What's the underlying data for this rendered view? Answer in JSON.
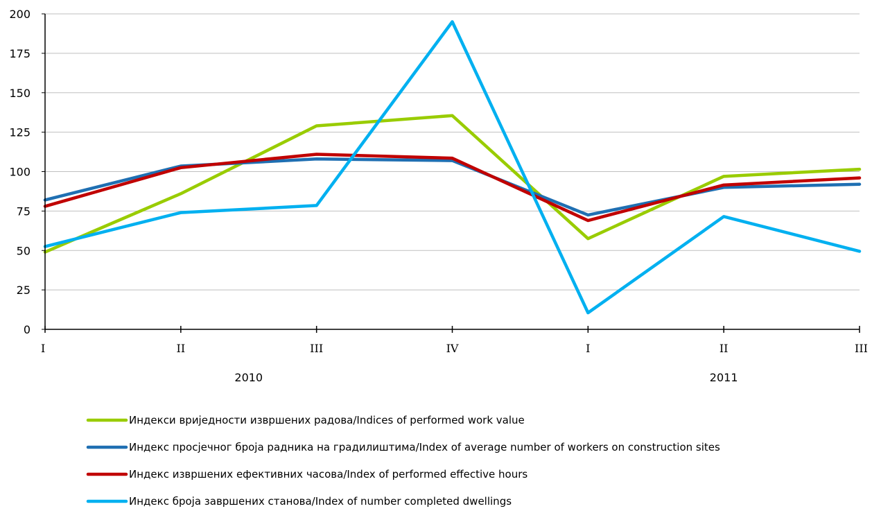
{
  "chart_data": {
    "type": "line",
    "categories": [
      "I",
      "II",
      "III",
      "IV",
      "I",
      "II",
      "III"
    ],
    "groups": [
      {
        "label": "2010",
        "start": 0,
        "end": 3
      },
      {
        "label": "2011",
        "start": 4,
        "end": 6
      }
    ],
    "ylim": [
      0,
      200
    ],
    "yticks": [
      "0",
      "25",
      "50",
      "75",
      "100",
      "125",
      "150",
      "175",
      "200"
    ],
    "grid": true,
    "legend_position": "bottom",
    "series": [
      {
        "name": "Индекси вриједности извршених радова/Indices of performed work value",
        "color": "#99cc00",
        "values": [
          49,
          86,
          129,
          135.5,
          57.5,
          97,
          101.5
        ]
      },
      {
        "name": "Индекс просјечног броја радника на градилиштима/Index of average number of workers on construction sites",
        "color": "#1f6fb2",
        "values": [
          82,
          103.5,
          108,
          107,
          72.5,
          90,
          92
        ]
      },
      {
        "name": "Индекс извршених ефективних часова/Index of performed effective hours",
        "color": "#c00000",
        "values": [
          78,
          102.5,
          111,
          108.5,
          69,
          91.5,
          96
        ]
      },
      {
        "name": "Индекс броја завршених станова/Index of number completed dwellings",
        "color": "#00b0f0",
        "values": [
          52.5,
          74,
          78.5,
          195,
          10.5,
          71.5,
          49.5
        ]
      }
    ]
  }
}
